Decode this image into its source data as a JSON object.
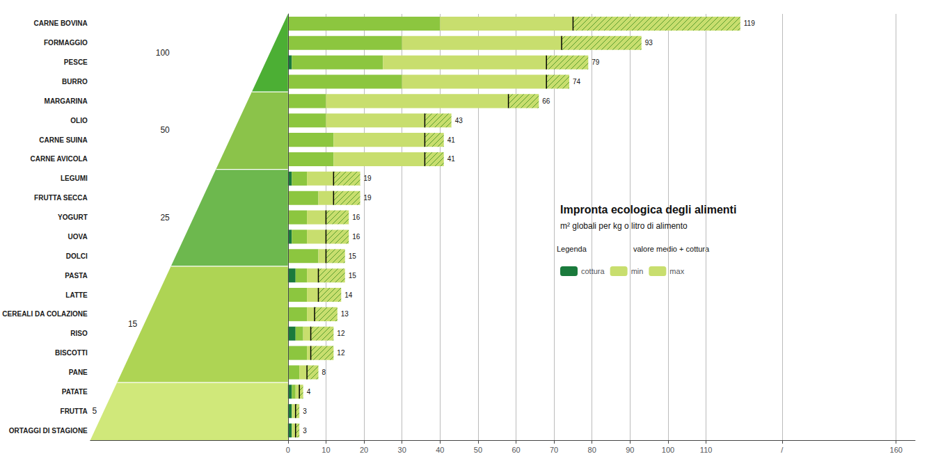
{
  "chart_data": {
    "type": "bar",
    "orientation": "horizontal",
    "title": "Impronta ecologica degli alimenti",
    "subtitle": "m² globali per kg o litro di alimento",
    "annotations": [
      "Legenda",
      "valore medio + cottura"
    ],
    "categories": [
      "CARNE BOVINA",
      "FORMAGGIO",
      "PESCE",
      "BURRO",
      "MARGARINA",
      "OLIO",
      "CARNE SUINA",
      "CARNE AVICOLA",
      "LEGUMI",
      "FRUTTA SECCA",
      "YOGURT",
      "UOVA",
      "DOLCI",
      "PASTA",
      "LATTE",
      "CEREALI DA COLAZIONE",
      "RISO",
      "BISCOTTI",
      "PANE",
      "PATATE",
      "FRUTTA",
      "ORTAGGI DI STAGIONE"
    ],
    "series": [
      {
        "name": "cottura",
        "color": "#1a7a3c",
        "values": [
          0,
          0,
          1,
          0,
          0,
          0,
          0,
          0,
          1,
          0,
          0,
          1,
          0,
          2,
          0,
          0,
          2,
          0,
          0,
          1,
          1,
          1
        ]
      },
      {
        "color": "#8cc63f",
        "values": [
          40,
          30,
          25,
          30,
          10,
          10,
          12,
          12,
          5,
          8,
          5,
          5,
          8,
          5,
          5,
          5,
          4,
          5,
          3,
          2,
          1,
          1
        ]
      },
      {
        "name": "min",
        "color": "#c8de6e",
        "marker": "line",
        "values": [
          75,
          72,
          68,
          68,
          58,
          36,
          36,
          36,
          12,
          12,
          10,
          10,
          10,
          8,
          8,
          7,
          6,
          6,
          5,
          3,
          2,
          2
        ]
      },
      {
        "name": "max",
        "color": "#c8de6e",
        "hatch_color": "#5a9e2f",
        "data_labels": true,
        "values": [
          119,
          93,
          79,
          74,
          66,
          43,
          41,
          41,
          19,
          19,
          16,
          16,
          15,
          15,
          14,
          13,
          12,
          12,
          8,
          4,
          3,
          3
        ]
      }
    ],
    "bands": [
      {
        "label": "5",
        "color": "#d0e87a",
        "first": "PATATE",
        "last": "ORTAGGI DI STAGIONE"
      },
      {
        "label": "15",
        "color": "#aed454",
        "first": "PASTA",
        "last": "PANE"
      },
      {
        "label": "25",
        "color": "#6db84e",
        "first": "LEGUMI",
        "last": "DOLCI"
      },
      {
        "label": "50",
        "color": "#8bc34a",
        "first": "MARGARINA",
        "last": "CARNE AVICOLA"
      },
      {
        "label": "100",
        "color": "#4caf34",
        "first": "CARNE BOVINA",
        "last": "BURRO"
      }
    ],
    "xlim": [
      -52,
      165
    ],
    "xticks": [
      0,
      10,
      20,
      30,
      40,
      50,
      60,
      70,
      80,
      90,
      100,
      110,
      {
        "value": 130,
        "label": "/"
      },
      160
    ],
    "grid": true,
    "legend": "right"
  }
}
